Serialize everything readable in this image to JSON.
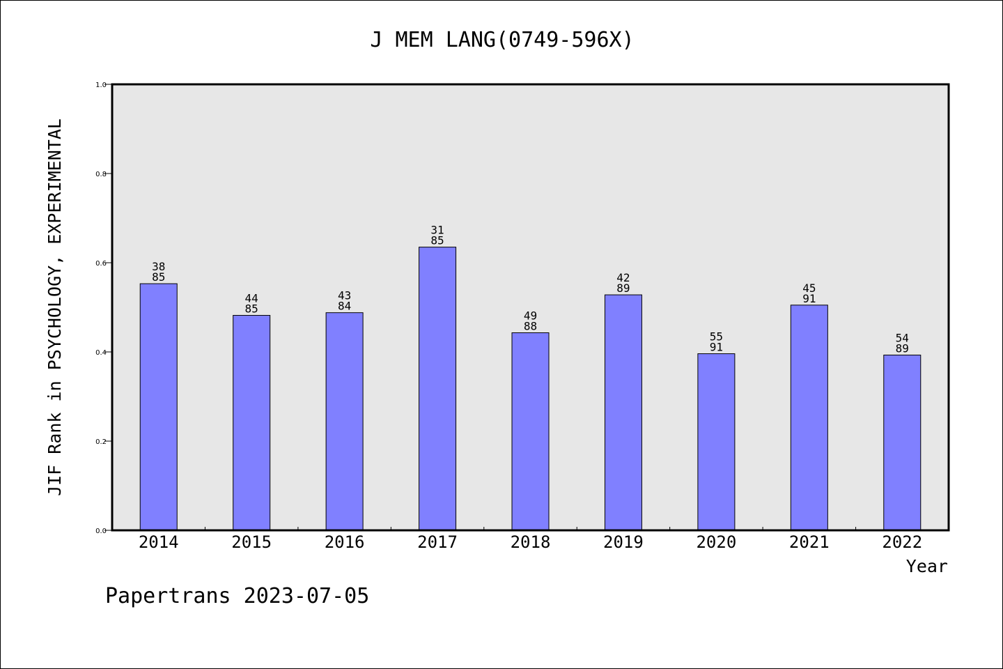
{
  "chart_data": {
    "type": "bar",
    "title": "J MEM LANG(0749-596X)",
    "xlabel": "Year",
    "ylabel": "JIF Rank in PSYCHOLOGY, EXPERIMENTAL",
    "categories": [
      "2014",
      "2015",
      "2016",
      "2017",
      "2018",
      "2019",
      "2020",
      "2021",
      "2022"
    ],
    "values": [
      0.553,
      0.482,
      0.488,
      0.635,
      0.443,
      0.528,
      0.396,
      0.505,
      0.393
    ],
    "data_labels": [
      [
        "38",
        "85"
      ],
      [
        "44",
        "85"
      ],
      [
        "43",
        "84"
      ],
      [
        "31",
        "85"
      ],
      [
        "49",
        "88"
      ],
      [
        "42",
        "89"
      ],
      [
        "55",
        "91"
      ],
      [
        "45",
        "91"
      ],
      [
        "54",
        "89"
      ]
    ],
    "ylim": [
      0,
      1.0
    ],
    "yticks": [
      "0.0",
      "0.2",
      "0.4",
      "0.6",
      "0.8",
      "1.0"
    ],
    "grid": false,
    "colors": {
      "bar": "#8080ff",
      "plot_background": "#e7e7e7"
    }
  },
  "footer": {
    "credit": "Papertrans 2023-07-05"
  }
}
